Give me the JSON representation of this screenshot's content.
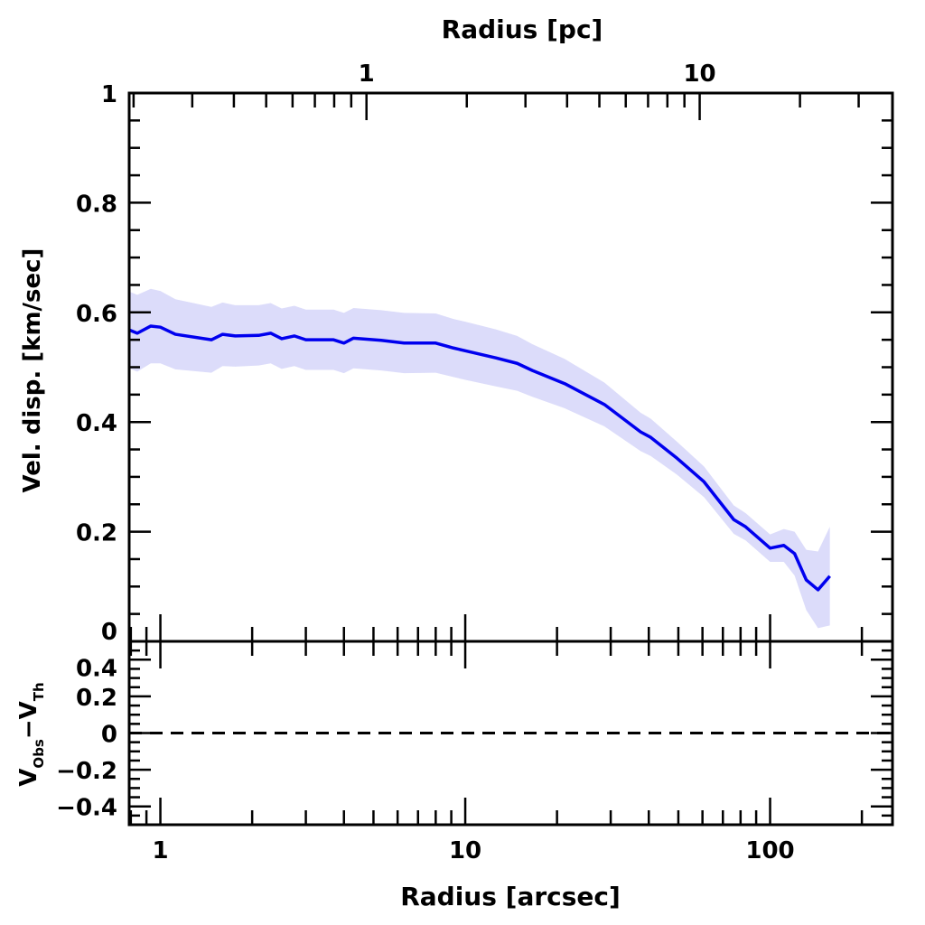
{
  "chart_data": {
    "type": "line",
    "title": "",
    "top_xlabel": "Radius [pc]",
    "xlabel": "Radius [arcsec]",
    "ylabel": "Vel. disp. [km/sec]",
    "residual_ylabel": {
      "main": "V",
      "sub1": "Obs",
      "mid": "−V",
      "sub2": "Th"
    },
    "xscale": "log",
    "xlim": [
      0.79,
      252
    ],
    "top_xlim_pc": [
      0.194,
      37.9
    ],
    "ylim": [
      0,
      1
    ],
    "residual_ylim": [
      -0.5,
      0.5
    ],
    "x_ticks": [
      {
        "v": 1,
        "label": "1"
      },
      {
        "v": 10,
        "label": "10"
      },
      {
        "v": 100,
        "label": "100"
      }
    ],
    "top_x_ticks": [
      {
        "v": 1,
        "label": "1"
      },
      {
        "v": 10,
        "label": "10"
      }
    ],
    "y_ticks": [
      {
        "v": 0,
        "label": "0"
      },
      {
        "v": 0.2,
        "label": "0.2"
      },
      {
        "v": 0.4,
        "label": "0.4"
      },
      {
        "v": 0.6,
        "label": "0.6"
      },
      {
        "v": 0.8,
        "label": "0.8"
      },
      {
        "v": 1,
        "label": "1"
      }
    ],
    "residual_y_ticks": [
      {
        "v": 0.4,
        "label": "0.4"
      },
      {
        "v": 0.2,
        "label": "0.2"
      },
      {
        "v": 0,
        "label": "0"
      },
      {
        "v": -0.2,
        "label": "−0.2"
      },
      {
        "v": -0.4,
        "label": "−0.4"
      }
    ],
    "series": [
      {
        "name": "Velocity dispersion",
        "color": "#0000ee",
        "band_color": "#dcdcfa",
        "x": [
          0.79,
          0.84,
          0.93,
          1.0,
          1.12,
          1.47,
          1.6,
          1.76,
          2.1,
          2.3,
          2.5,
          2.75,
          3.0,
          3.7,
          4.0,
          4.3,
          5.3,
          6.3,
          8.0,
          9.15,
          10,
          12.6,
          14.8,
          16.6,
          21.2,
          28.6,
          37.6,
          40.6,
          49.5,
          60.7,
          76.0,
          83.1,
          100,
          110.9,
          120.3,
          131.4,
          143.6,
          157
        ],
        "y": [
          0.568,
          0.562,
          0.575,
          0.573,
          0.56,
          0.55,
          0.56,
          0.557,
          0.558,
          0.562,
          0.552,
          0.557,
          0.55,
          0.55,
          0.544,
          0.553,
          0.549,
          0.544,
          0.544,
          0.535,
          0.53,
          0.517,
          0.507,
          0.494,
          0.47,
          0.432,
          0.382,
          0.372,
          0.334,
          0.291,
          0.222,
          0.209,
          0.17,
          0.175,
          0.16,
          0.112,
          0.094,
          0.119
        ],
        "err": [
          0.07,
          0.07,
          0.068,
          0.066,
          0.064,
          0.06,
          0.058,
          0.056,
          0.055,
          0.055,
          0.055,
          0.055,
          0.055,
          0.055,
          0.055,
          0.055,
          0.055,
          0.055,
          0.054,
          0.053,
          0.053,
          0.052,
          0.05,
          0.048,
          0.045,
          0.04,
          0.035,
          0.034,
          0.03,
          0.028,
          0.026,
          0.025,
          0.025,
          0.03,
          0.04,
          0.055,
          0.07,
          0.09
        ]
      }
    ],
    "residual_reference_line": {
      "y": 0,
      "style": "dashed"
    }
  }
}
